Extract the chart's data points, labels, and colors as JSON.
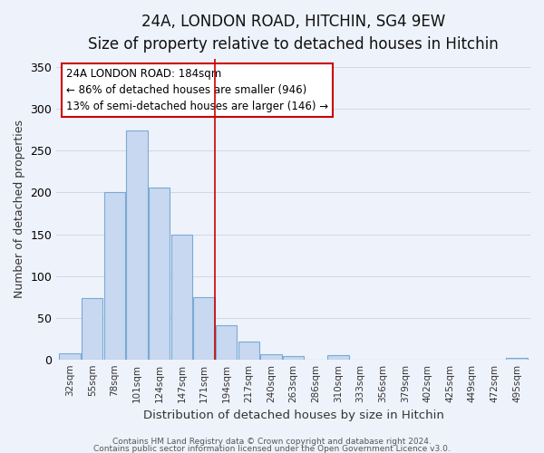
{
  "title": "24A, LONDON ROAD, HITCHIN, SG4 9EW",
  "subtitle": "Size of property relative to detached houses in Hitchin",
  "xlabel": "Distribution of detached houses by size in Hitchin",
  "ylabel": "Number of detached properties",
  "bar_labels": [
    "32sqm",
    "55sqm",
    "78sqm",
    "101sqm",
    "124sqm",
    "147sqm",
    "171sqm",
    "194sqm",
    "217sqm",
    "240sqm",
    "263sqm",
    "286sqm",
    "310sqm",
    "333sqm",
    "356sqm",
    "379sqm",
    "402sqm",
    "425sqm",
    "449sqm",
    "472sqm",
    "495sqm"
  ],
  "bar_values": [
    7,
    73,
    201,
    274,
    206,
    149,
    75,
    41,
    21,
    6,
    4,
    0,
    5,
    0,
    0,
    0,
    0,
    0,
    0,
    0,
    2
  ],
  "bar_color": "#c8d8f0",
  "bar_edge_color": "#7aaad4",
  "ylim": [
    0,
    360
  ],
  "yticks": [
    0,
    50,
    100,
    150,
    200,
    250,
    300,
    350
  ],
  "vertical_line_x": 6.5,
  "vline_color": "#cc0000",
  "annotation_line1": "24A LONDON ROAD: 184sqm",
  "annotation_line2": "← 86% of detached houses are smaller (946)",
  "annotation_line3": "13% of semi-detached houses are larger (146) →",
  "annotation_box_color": "#cc0000",
  "annotation_box_fill": "#ffffff",
  "footer_line1": "Contains HM Land Registry data © Crown copyright and database right 2024.",
  "footer_line2": "Contains public sector information licensed under the Open Government Licence v3.0.",
  "background_color": "#eef2fb",
  "title_fontsize": 12,
  "subtitle_fontsize": 10,
  "grid_color": "#d0d8e8"
}
